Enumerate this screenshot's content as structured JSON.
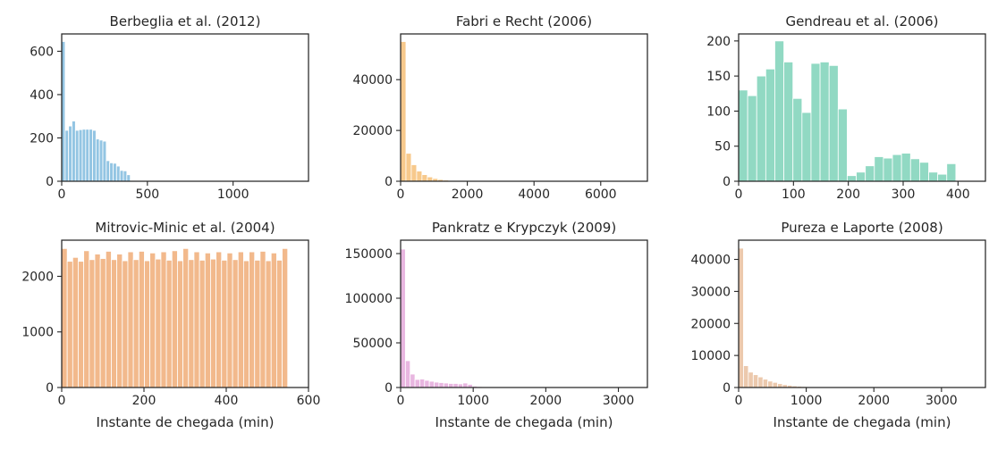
{
  "figure": {
    "xlabel": "Instante de chegada (min)",
    "colors": [
      "#93c5e3",
      "#f7c98c",
      "#91d9c3",
      "#f2b98c",
      "#e8b6e0",
      "#ecc9ad"
    ]
  },
  "chart_data": [
    {
      "type": "bar",
      "title": "Berbeglia et al. (2012)",
      "color": "#93c5e3",
      "xlim": [
        0,
        1440
      ],
      "ylim": [
        0,
        680
      ],
      "xticks": [
        0,
        500,
        1000
      ],
      "yticks": [
        0,
        200,
        400,
        600
      ],
      "bin_width": 20,
      "bin_start": 0,
      "values": [
        645,
        235,
        255,
        278,
        235,
        238,
        240,
        240,
        240,
        235,
        195,
        190,
        185,
        95,
        85,
        83,
        70,
        50,
        48,
        30
      ],
      "xlabel": ""
    },
    {
      "type": "bar",
      "title": "Fabri e Recht (2006)",
      "color": "#f7c98c",
      "xlim": [
        0,
        7400
      ],
      "ylim": [
        0,
        58000
      ],
      "xticks": [
        0,
        2000,
        4000,
        6000
      ],
      "yticks": [
        0,
        20000,
        40000
      ],
      "bin_width": 160,
      "bin_start": 0,
      "values": [
        55000,
        11000,
        6500,
        4000,
        2600,
        1700,
        1100,
        700,
        450,
        300,
        200,
        130,
        90,
        60,
        40
      ],
      "xlabel": ""
    },
    {
      "type": "bar",
      "title": "Gendreau et al. (2006)",
      "color": "#91d9c3",
      "xlim": [
        0,
        450
      ],
      "ylim": [
        0,
        210
      ],
      "xticks": [
        0,
        100,
        200,
        300,
        400
      ],
      "yticks": [
        0,
        50,
        100,
        150,
        200
      ],
      "bin_width": 16.5,
      "bin_start": 0,
      "values": [
        130,
        122,
        150,
        160,
        200,
        170,
        118,
        98,
        168,
        170,
        165,
        103,
        8,
        13,
        22,
        35,
        33,
        38,
        40,
        32,
        27,
        13,
        10,
        25
      ],
      "xlabel": ""
    },
    {
      "type": "bar",
      "title": "Mitrovic-Minic et al. (2004)",
      "color": "#f2b98c",
      "xlim": [
        0,
        600
      ],
      "ylim": [
        0,
        2650
      ],
      "xticks": [
        0,
        200,
        400,
        600
      ],
      "yticks": [
        0,
        1000,
        2000
      ],
      "bin_width": 13.4,
      "bin_start": 0,
      "values": [
        2500,
        2270,
        2340,
        2270,
        2460,
        2300,
        2400,
        2320,
        2450,
        2300,
        2400,
        2280,
        2440,
        2300,
        2450,
        2280,
        2420,
        2310,
        2440,
        2290,
        2460,
        2280,
        2500,
        2300,
        2440,
        2290,
        2420,
        2310,
        2440,
        2290,
        2420,
        2300,
        2440,
        2280,
        2440,
        2290,
        2450,
        2280,
        2420,
        2290,
        2500
      ],
      "xlabel": "Instante de chegada (min)"
    },
    {
      "type": "bar",
      "title": "Pankratz e Krypczyk (2009)",
      "color": "#e8b6e0",
      "xlim": [
        0,
        3400
      ],
      "ylim": [
        0,
        165000
      ],
      "xticks": [
        0,
        1000,
        2000,
        3000
      ],
      "yticks": [
        0,
        50000,
        100000,
        150000
      ],
      "bin_width": 66,
      "bin_start": 0,
      "values": [
        155000,
        30000,
        15000,
        9000,
        9500,
        8000,
        7000,
        6000,
        5500,
        5000,
        4500,
        4500,
        4000,
        5000,
        3500,
        1500,
        1000,
        500,
        300,
        200
      ],
      "xlabel": "Instante de chegada (min)"
    },
    {
      "type": "bar",
      "title": "Pureza e Laporte (2008)",
      "color": "#ecc9ad",
      "xlim": [
        0,
        3650
      ],
      "ylim": [
        0,
        46000
      ],
      "xticks": [
        0,
        1000,
        2000,
        3000
      ],
      "yticks": [
        0,
        10000,
        20000,
        30000,
        40000
      ],
      "bin_width": 72,
      "bin_start": 0,
      "values": [
        43500,
        6800,
        4800,
        4000,
        3300,
        2600,
        2000,
        1600,
        1200,
        900,
        700,
        500,
        400,
        300,
        200,
        150,
        100,
        80,
        60
      ],
      "xlabel": "Instante de chegada (min)"
    }
  ]
}
